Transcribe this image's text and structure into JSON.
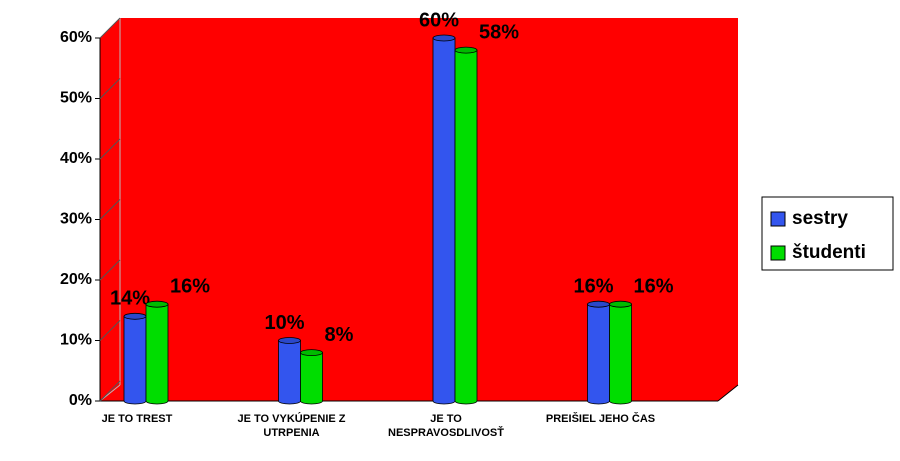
{
  "chart_data": {
    "type": "bar",
    "categories": [
      "JE TO TREST",
      "JE TO VYKÚPENIE Z UTRPENIA",
      "JE TO NESPRAVOSDLIVOSŤ",
      "PREIŠIEL JEHO ČAS"
    ],
    "series": [
      {
        "name": "sestry",
        "color": "#3355ee",
        "values": [
          14,
          10,
          60,
          16
        ],
        "value_labels": [
          "14%",
          "10%",
          "60%",
          "16%"
        ]
      },
      {
        "name": "študenti",
        "color": "#00dd00",
        "values": [
          16,
          8,
          58,
          16
        ],
        "value_labels": [
          "16%",
          "8%",
          "58%",
          "16%"
        ]
      }
    ],
    "ylim": [
      0,
      60
    ],
    "yticks": [
      {
        "value": 0,
        "label": "0%"
      },
      {
        "value": 10,
        "label": "10%"
      },
      {
        "value": 20,
        "label": "20%"
      },
      {
        "value": 30,
        "label": "30%"
      },
      {
        "value": 40,
        "label": "40%"
      },
      {
        "value": 50,
        "label": "50%"
      },
      {
        "value": 60,
        "label": "60%"
      }
    ],
    "wall_color": "#ff0000",
    "legend": "right"
  }
}
